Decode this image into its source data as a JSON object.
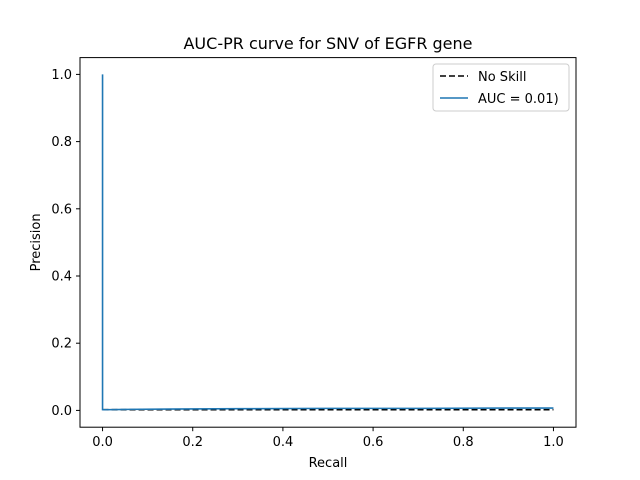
{
  "chart_data": {
    "type": "line",
    "title": "AUC-PR curve for SNV of EGFR gene",
    "xlabel": "Recall",
    "ylabel": "Precision",
    "xlim": [
      -0.05,
      1.05
    ],
    "ylim": [
      -0.05,
      1.05
    ],
    "xticks": [
      0.0,
      0.2,
      0.4,
      0.6,
      0.8,
      1.0
    ],
    "yticks": [
      0.0,
      0.2,
      0.4,
      0.6,
      0.8,
      1.0
    ],
    "xtick_labels": [
      "0.0",
      "0.2",
      "0.4",
      "0.6",
      "0.8",
      "1.0"
    ],
    "ytick_labels": [
      "0.0",
      "0.2",
      "0.4",
      "0.6",
      "0.8",
      "1.0"
    ],
    "grid": false,
    "legend_position": "top-right",
    "series": [
      {
        "name": "No Skill",
        "style": "dashed",
        "color": "#000000",
        "x": [
          0.0,
          1.0
        ],
        "y": [
          0.002,
          0.002
        ]
      },
      {
        "name": "AUC = 0.01)",
        "style": "solid",
        "color": "#1f77b4",
        "x": [
          0.0,
          0.0,
          0.0,
          0.05,
          0.15,
          0.3,
          0.5,
          0.7,
          0.9,
          1.0
        ],
        "y": [
          1.0,
          0.0,
          0.002,
          0.003,
          0.004,
          0.005,
          0.006,
          0.006,
          0.007,
          0.007
        ]
      }
    ]
  }
}
